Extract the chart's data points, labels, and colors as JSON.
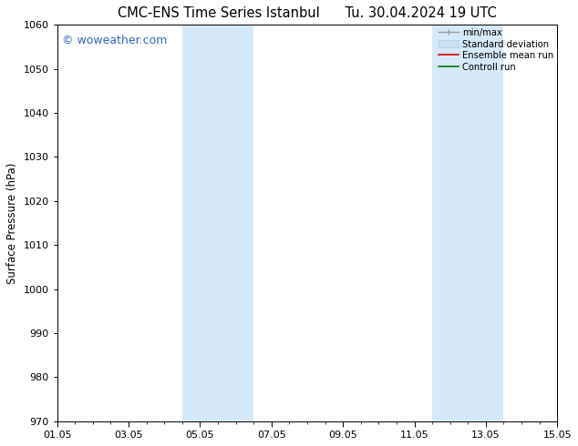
{
  "title_left": "CMC-ENS Time Series Istanbul",
  "title_right": "Tu. 30.04.2024 19 UTC",
  "ylabel": "Surface Pressure (hPa)",
  "ylim": [
    970,
    1060
  ],
  "yticks": [
    970,
    980,
    990,
    1000,
    1010,
    1020,
    1030,
    1040,
    1050,
    1060
  ],
  "xtick_labels": [
    "01.05",
    "03.05",
    "05.05",
    "07.05",
    "09.05",
    "11.05",
    "13.05",
    "15.05"
  ],
  "xtick_positions": [
    0,
    2,
    4,
    6,
    8,
    10,
    12,
    14
  ],
  "xlim": [
    0,
    14
  ],
  "shaded_bands": [
    {
      "x_start": 3.5,
      "x_end": 5.5
    },
    {
      "x_start": 10.5,
      "x_end": 12.5
    }
  ],
  "shaded_color": "#d6e9f8",
  "background_color": "#ffffff",
  "watermark_text": "© woweather.com",
  "watermark_color": "#3366cc",
  "title_fontsize": 10.5,
  "tick_fontsize": 8,
  "ylabel_fontsize": 8.5,
  "watermark_fontsize": 9
}
